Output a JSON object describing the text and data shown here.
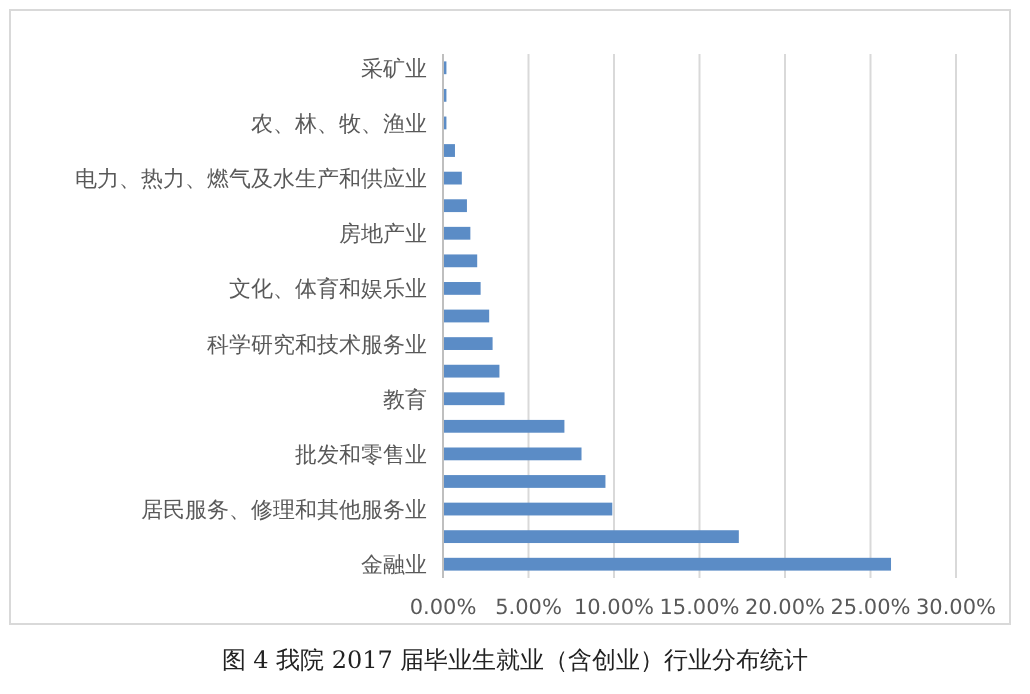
{
  "chart_data": {
    "type": "bar",
    "orientation": "horizontal",
    "categories": [
      "采矿业",
      null,
      "农、林、牧、渔业",
      null,
      "电力、热力、燃气及水生产和供应业",
      null,
      "房地产业",
      null,
      "文化、体育和娱乐业",
      null,
      "科学研究和技术服务业",
      null,
      "教育",
      null,
      "批发和零售业",
      null,
      "居民服务、修理和其他服务业",
      null,
      "金融业"
    ],
    "values": [
      0.2,
      0.2,
      0.2,
      0.7,
      1.1,
      1.4,
      1.6,
      2.0,
      2.2,
      2.7,
      2.9,
      3.3,
      3.6,
      7.1,
      8.1,
      9.5,
      9.9,
      17.3,
      26.2
    ],
    "color": "#5b8cc6",
    "xlim": [
      0,
      30
    ],
    "xticks": [
      {
        "value": 0,
        "label": "0.00%"
      },
      {
        "value": 5,
        "label": "5.00%"
      },
      {
        "value": 10,
        "label": "10.00%"
      },
      {
        "value": 15,
        "label": "15.00%"
      },
      {
        "value": 20,
        "label": "20.00%"
      },
      {
        "value": 25,
        "label": "25.00%"
      },
      {
        "value": 30,
        "label": "30.00%"
      }
    ],
    "grid": "x",
    "annotations": [
      "图 4  我院 2017 届毕业生就业（含创业）行业分布统计"
    ]
  }
}
